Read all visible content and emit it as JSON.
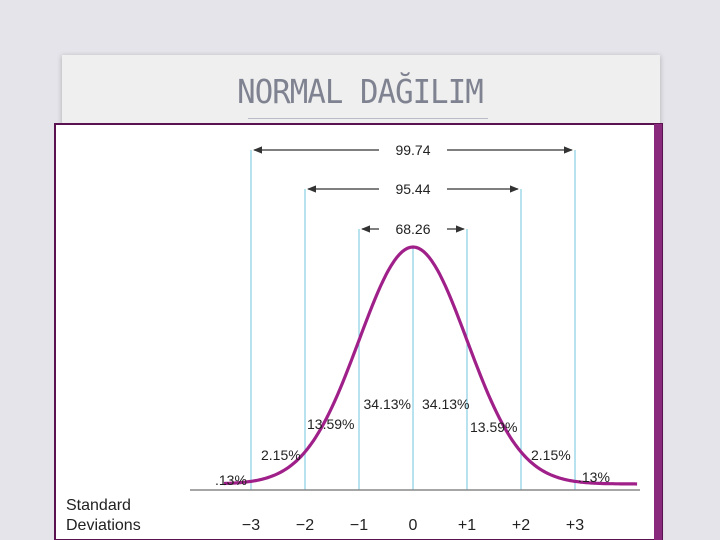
{
  "slide": {
    "title": "NORMAL DAĞILIM"
  },
  "chart_data": {
    "type": "area",
    "title": "",
    "xlabel": "Standard Deviations",
    "ylabel": "",
    "xlim": [
      -3.5,
      4.2
    ],
    "x_ticks": [
      {
        "value": -3,
        "label": "−3"
      },
      {
        "value": -2,
        "label": "−2"
      },
      {
        "value": -1,
        "label": "−1"
      },
      {
        "value": 0,
        "label": "0"
      },
      {
        "value": 1,
        "label": "+1"
      },
      {
        "value": 2,
        "label": "+2"
      },
      {
        "value": 3,
        "label": "+3"
      }
    ],
    "regions": [
      {
        "from": -3.5,
        "to": -3,
        "percent_label": ".13%"
      },
      {
        "from": -3,
        "to": -2,
        "percent_label": "2.15%"
      },
      {
        "from": -2,
        "to": -1,
        "percent_label": "13.59%"
      },
      {
        "from": -1,
        "to": 0,
        "percent_label": "34.13%"
      },
      {
        "from": 0,
        "to": 1,
        "percent_label": "34.13%"
      },
      {
        "from": 1,
        "to": 2,
        "percent_label": "13.59%"
      },
      {
        "from": 2,
        "to": 3,
        "percent_label": "2.15%"
      },
      {
        "from": 3,
        "to": 3.5,
        "percent_label": ".13%"
      }
    ],
    "intervals": [
      {
        "from": -3,
        "to": 3,
        "label": "99.74"
      },
      {
        "from": -2,
        "to": 2,
        "label": "95.44"
      },
      {
        "from": -1,
        "to": 1,
        "label": "68.26"
      }
    ],
    "colors": {
      "curve": "#a0208a",
      "frame_border": "#5a1250",
      "frame_band": "#8a2a7c",
      "guide_lines": "#6fc6dd",
      "axis": "#888888",
      "text": "#222222"
    }
  }
}
